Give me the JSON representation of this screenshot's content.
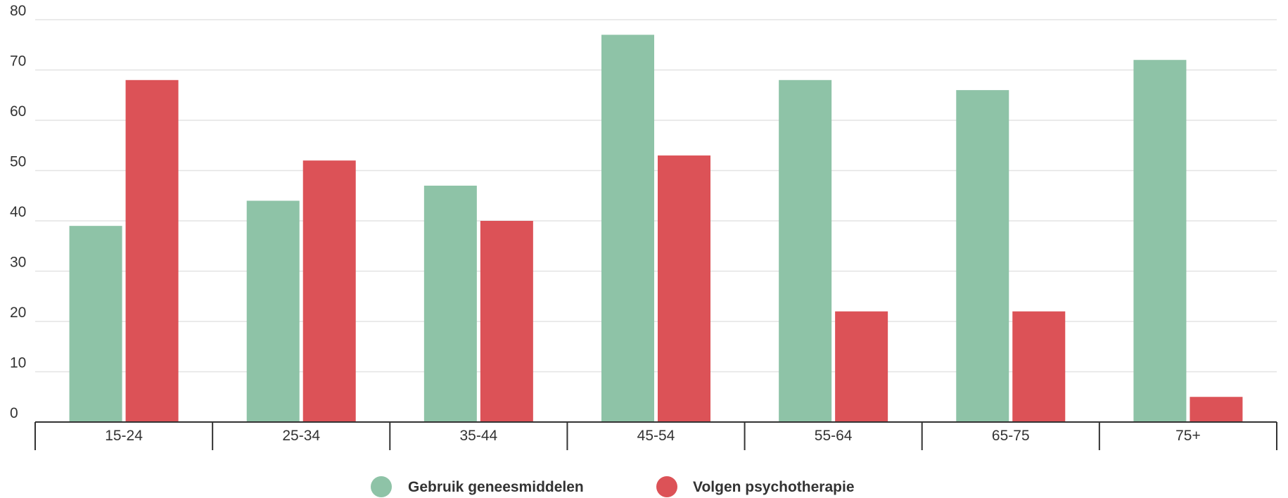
{
  "chart_data": {
    "type": "bar",
    "categories": [
      "15-24",
      "25-34",
      "35-44",
      "45-54",
      "55-64",
      "65-75",
      "75+"
    ],
    "series": [
      {
        "name": "Gebruik geneesmiddelen",
        "color": "#8ec3a7",
        "values": [
          39,
          44,
          47,
          77,
          68,
          66,
          72
        ]
      },
      {
        "name": "Volgen psychotherapie",
        "color": "#dc5257",
        "values": [
          68,
          52,
          40,
          53,
          22,
          22,
          5
        ]
      }
    ],
    "title": "",
    "xlabel": "",
    "ylabel": "",
    "ylim": [
      0,
      80
    ],
    "yticks": [
      0,
      10,
      20,
      30,
      40,
      50,
      60,
      70,
      80
    ],
    "grid": true,
    "legend_position": "bottom-center"
  }
}
